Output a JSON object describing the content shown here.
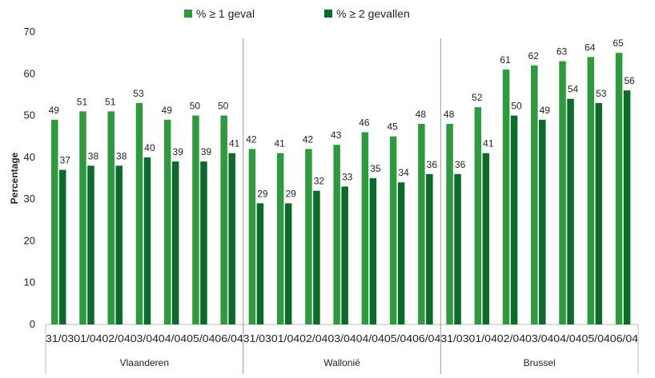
{
  "chart_data": {
    "type": "bar",
    "ylabel": "Percentage",
    "ylim": [
      0,
      70
    ],
    "yticks": [
      0,
      10,
      20,
      30,
      40,
      50,
      60,
      70
    ],
    "grid": false,
    "legend_position": "top",
    "groups": [
      "Vlaanderen",
      "Wallonië",
      "Brussel"
    ],
    "categories": [
      "31/03",
      "01/04",
      "02/04",
      "03/04",
      "04/04",
      "05/04",
      "06/04"
    ],
    "series": [
      {
        "name": "% ≥ 1 geval",
        "color": "#2e9a3e",
        "values": [
          [
            49,
            51,
            51,
            53,
            49,
            50,
            50
          ],
          [
            42,
            41,
            42,
            43,
            46,
            45,
            48
          ],
          [
            48,
            52,
            61,
            62,
            63,
            64,
            65
          ]
        ]
      },
      {
        "name": "% ≥ 2 gevallen",
        "color": "#0b6b2b",
        "values": [
          [
            37,
            38,
            38,
            40,
            39,
            39,
            41
          ],
          [
            29,
            29,
            32,
            33,
            35,
            34,
            36
          ],
          [
            36,
            41,
            50,
            49,
            54,
            53,
            56
          ]
        ]
      }
    ]
  }
}
